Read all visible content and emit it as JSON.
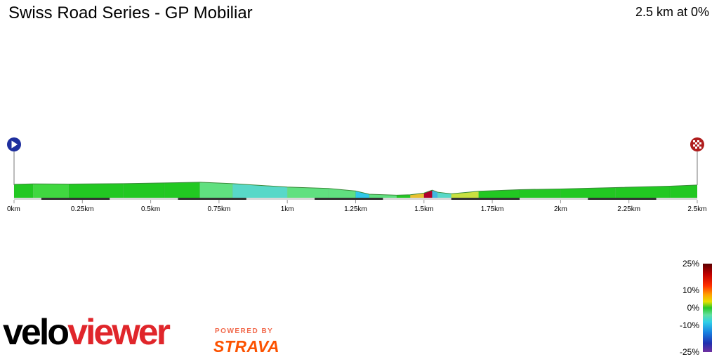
{
  "header": {
    "title": "Swiss Road Series - GP Mobiliar",
    "summary": "2.5 km at 0%"
  },
  "markers": {
    "start_icon": "play-marker-icon",
    "finish_icon": "checkered-flag-icon",
    "start_color": "#1e2f9e",
    "finish_color": "#b01e1e"
  },
  "gradient_scale": {
    "labels": [
      "25%",
      "10%",
      "0%",
      "-10%",
      "-25%"
    ],
    "values": [
      25,
      10,
      0,
      -10,
      -25
    ]
  },
  "branding": {
    "logo_part1": "velo",
    "logo_part2": "viewer",
    "powered_by": "POWERED BY",
    "strava": "STRAVA"
  },
  "chart_data": {
    "type": "area",
    "title": "Swiss Road Series - GP Mobiliar",
    "xlabel": "",
    "ylabel": "",
    "x_unit": "km",
    "xlim": [
      0,
      2.5
    ],
    "x_ticks": [
      0,
      0.25,
      0.5,
      0.75,
      1,
      1.25,
      1.5,
      1.75,
      2,
      2.25,
      2.5
    ],
    "x_tick_labels": [
      "0km",
      "0.25km",
      "0.5km",
      "0.75km",
      "1km",
      "1.25km",
      "1.5km",
      "1.75km",
      "2km",
      "2.25km",
      "2.5km"
    ],
    "distance_km": [
      0,
      0.07,
      0.2,
      0.4,
      0.55,
      0.68,
      0.8,
      1.0,
      1.15,
      1.25,
      1.3,
      1.4,
      1.45,
      1.5,
      1.53,
      1.55,
      1.6,
      1.7,
      1.85,
      2.0,
      2.2,
      2.4,
      2.5
    ],
    "relative_elevation": [
      0.55,
      0.57,
      0.56,
      0.58,
      0.61,
      0.64,
      0.58,
      0.43,
      0.37,
      0.26,
      0.12,
      0.08,
      0.1,
      0.17,
      0.3,
      0.21,
      0.14,
      0.25,
      0.32,
      0.35,
      0.41,
      0.47,
      0.52
    ],
    "gradients_pct": [
      1,
      -0.5,
      1,
      1.5,
      2,
      -3,
      -5,
      -3,
      -4,
      -10,
      -3,
      2,
      6,
      20,
      -18,
      -6,
      4,
      2,
      1,
      2,
      2,
      2
    ],
    "grid": false,
    "legend": "gradient scale bottom-right"
  }
}
